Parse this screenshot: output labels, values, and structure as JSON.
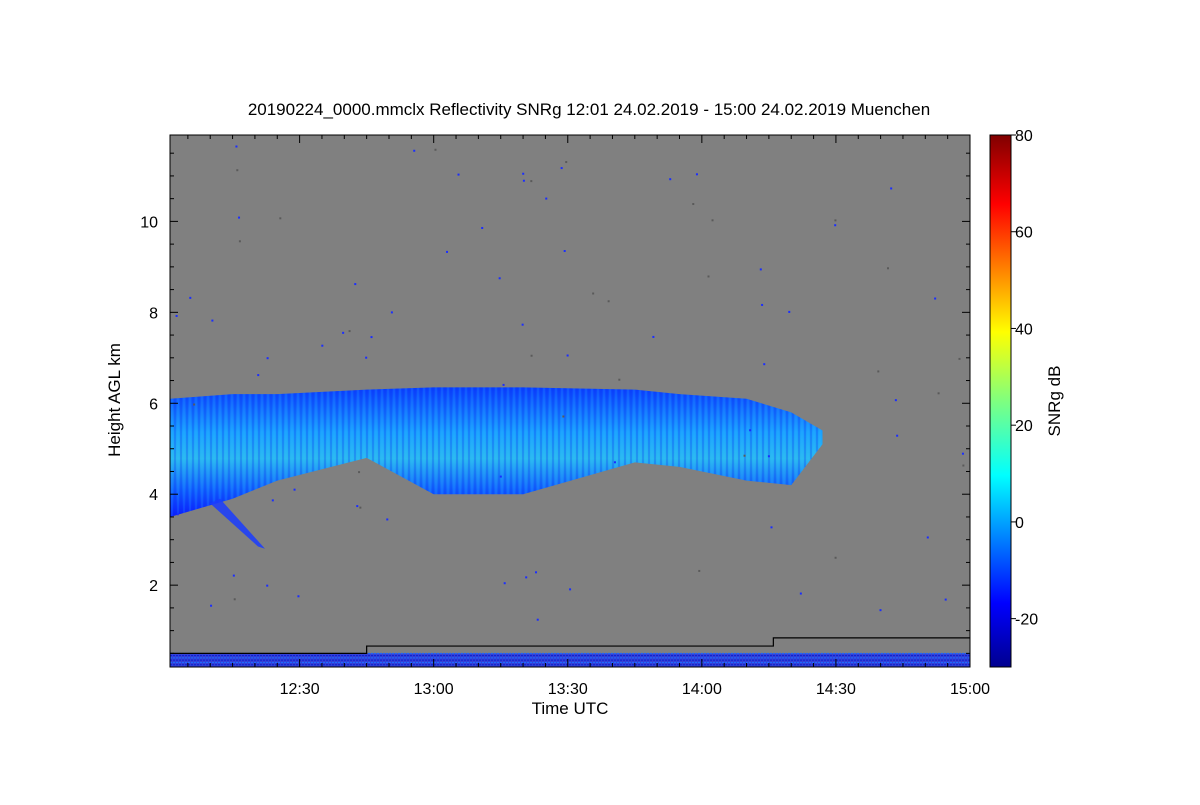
{
  "chart_data": {
    "type": "heatmap",
    "title": "20190224_0000.mmclx Reflectivity SNRg   12:01 24.02.2019 - 15:00 24.02.2019 Muenchen",
    "xlabel": "Time UTC",
    "ylabel": "Height AGL km",
    "xlim": [
      "12:01",
      "15:00"
    ],
    "ylim": [
      0.2,
      11.9
    ],
    "xticks": [
      "12:30",
      "13:00",
      "13:30",
      "14:00",
      "14:30",
      "15:00"
    ],
    "yticks": [
      2,
      4,
      6,
      8,
      10
    ],
    "colorbar": {
      "label": "SNRg dB",
      "range": [
        -30,
        80
      ],
      "ticks": [
        -20,
        0,
        20,
        40,
        60,
        80
      ],
      "colormap": "jet"
    },
    "background_color": "#808080",
    "cloud_layer": {
      "description_points": [
        {
          "time": "12:01",
          "top_km": 6.1,
          "base_km": 3.5
        },
        {
          "time": "12:15",
          "top_km": 6.2,
          "base_km": 3.9
        },
        {
          "time": "12:25",
          "top_km": 6.2,
          "base_km": 4.3
        },
        {
          "time": "12:45",
          "top_km": 6.3,
          "base_km": 4.8
        },
        {
          "time": "13:00",
          "top_km": 6.35,
          "base_km": 4.0
        },
        {
          "time": "13:20",
          "top_km": 6.35,
          "base_km": 4.0
        },
        {
          "time": "13:45",
          "top_km": 6.3,
          "base_km": 4.7
        },
        {
          "time": "13:55",
          "top_km": 6.2,
          "base_km": 4.6
        },
        {
          "time": "14:10",
          "top_km": 6.1,
          "base_km": 4.3
        },
        {
          "time": "14:20",
          "top_km": 5.8,
          "base_km": 4.2
        },
        {
          "time": "14:27",
          "top_km": 5.4,
          "base_km": 5.1
        }
      ],
      "peak_snr_db": 8
    },
    "lowest_gate_line": [
      {
        "time": "12:01",
        "height_km": 0.5
      },
      {
        "time": "12:45",
        "height_km": 0.5
      },
      {
        "time": "12:45",
        "height_km": 0.66
      },
      {
        "time": "14:16",
        "height_km": 0.66
      },
      {
        "time": "14:16",
        "height_km": 0.84
      },
      {
        "time": "15:00",
        "height_km": 0.84
      }
    ]
  }
}
